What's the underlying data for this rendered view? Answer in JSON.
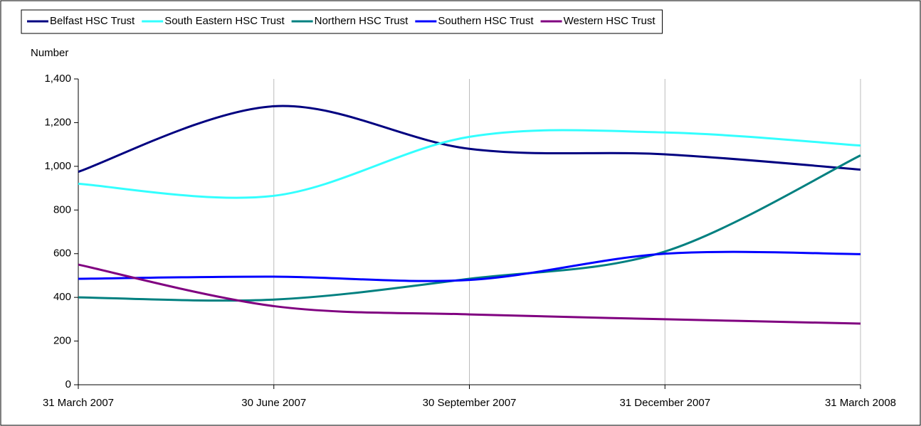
{
  "chart_data": {
    "type": "line",
    "y_label": "Number",
    "categories": [
      "31 March 2007",
      "30 June 2007",
      "30 September 2007",
      "31 December 2007",
      "31 March 2008"
    ],
    "series": [
      {
        "name": "Belfast HSC Trust",
        "color": "#000080",
        "values": [
          975,
          1275,
          1080,
          1055,
          985
        ]
      },
      {
        "name": "South Eastern HSC Trust",
        "color": "#33ffff",
        "values": [
          920,
          865,
          1135,
          1155,
          1095
        ]
      },
      {
        "name": "Northern HSC Trust",
        "color": "#008080",
        "values": [
          400,
          390,
          485,
          610,
          1050
        ]
      },
      {
        "name": "Southern HSC Trust",
        "color": "#0000ff",
        "values": [
          485,
          495,
          480,
          600,
          598
        ]
      },
      {
        "name": "Western HSC Trust",
        "color": "#800080",
        "values": [
          550,
          360,
          322,
          300,
          280
        ]
      }
    ],
    "ylim": [
      0,
      1400
    ],
    "yticks": [
      0,
      200,
      400,
      600,
      800,
      {
        "value": 1000,
        "label": "1,000"
      },
      {
        "value": 1200,
        "label": "1,200"
      },
      {
        "value": 1400,
        "label": "1,400"
      }
    ],
    "grid": "x",
    "legend": "top"
  }
}
